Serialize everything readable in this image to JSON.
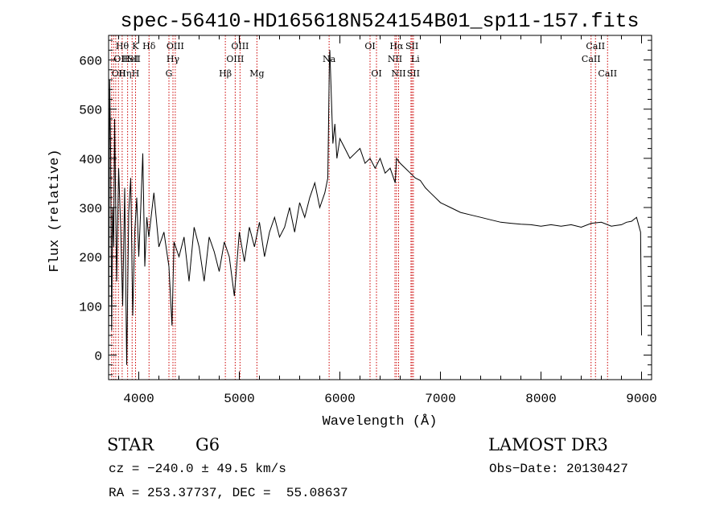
{
  "chart_data": {
    "type": "line",
    "title": "spec-56410-HD165618N524154B01_sp11-157.fits",
    "xlabel": "Wavelength (Å)",
    "ylabel": "Flux (relative)",
    "xlim": [
      3700,
      9100
    ],
    "ylim": [
      -50,
      650
    ],
    "xticks": [
      4000,
      5000,
      6000,
      7000,
      8000,
      9000
    ],
    "yticks": [
      0,
      100,
      200,
      300,
      400,
      500,
      600
    ],
    "grid": false,
    "line_color": "#000000",
    "marker_color": "#cc0000",
    "spectrum": {
      "x": [
        3700,
        3710,
        3720,
        3730,
        3740,
        3750,
        3760,
        3780,
        3800,
        3820,
        3840,
        3860,
        3880,
        3900,
        3920,
        3940,
        3960,
        3980,
        4000,
        4020,
        4040,
        4060,
        4080,
        4100,
        4150,
        4200,
        4250,
        4300,
        4330,
        4350,
        4400,
        4450,
        4500,
        4550,
        4600,
        4650,
        4700,
        4750,
        4800,
        4850,
        4900,
        4950,
        5000,
        5050,
        5100,
        5150,
        5200,
        5250,
        5300,
        5350,
        5400,
        5450,
        5500,
        5550,
        5600,
        5650,
        5700,
        5750,
        5800,
        5850,
        5880,
        5895,
        5900,
        5930,
        5950,
        5970,
        6000,
        6050,
        6100,
        6150,
        6200,
        6250,
        6300,
        6350,
        6400,
        6450,
        6500,
        6550,
        6563,
        6600,
        6650,
        6700,
        6750,
        6800,
        6850,
        6900,
        6950,
        7000,
        7100,
        7200,
        7300,
        7400,
        7500,
        7600,
        7700,
        7800,
        7900,
        8000,
        8100,
        8200,
        8300,
        8400,
        8500,
        8600,
        8700,
        8800,
        8850,
        8900,
        8950,
        8990,
        9000
      ],
      "y": [
        0,
        560,
        420,
        50,
        300,
        220,
        480,
        150,
        380,
        260,
        100,
        340,
        -20,
        290,
        360,
        80,
        250,
        320,
        200,
        300,
        410,
        180,
        280,
        240,
        330,
        220,
        250,
        180,
        60,
        230,
        200,
        240,
        150,
        260,
        220,
        150,
        240,
        210,
        170,
        230,
        200,
        120,
        250,
        190,
        260,
        220,
        270,
        200,
        250,
        280,
        240,
        260,
        300,
        250,
        310,
        280,
        320,
        350,
        300,
        330,
        360,
        590,
        620,
        430,
        470,
        400,
        440,
        420,
        400,
        410,
        420,
        390,
        400,
        380,
        400,
        370,
        380,
        350,
        400,
        390,
        380,
        370,
        360,
        355,
        340,
        330,
        320,
        310,
        300,
        290,
        285,
        280,
        275,
        270,
        268,
        266,
        265,
        262,
        265,
        262,
        265,
        260,
        268,
        270,
        262,
        265,
        270,
        272,
        280,
        250,
        40
      ]
    },
    "lines": [
      {
        "x": 3730,
        "label": "OII",
        "row": 2,
        "anchor": "start"
      },
      {
        "x": 3750,
        "label": "OII",
        "row": 1,
        "anchor": "start"
      },
      {
        "x": 3771,
        "label": "Hθ",
        "row": 0,
        "anchor": "start"
      },
      {
        "x": 3798,
        "label": "Hη",
        "row": 2,
        "anchor": "start"
      },
      {
        "x": 3835,
        "label": "HeI",
        "row": 1,
        "anchor": "start"
      },
      {
        "x": 3889,
        "label": "SII",
        "row": 1,
        "anchor": "start"
      },
      {
        "x": 3934,
        "label": "K",
        "row": 0,
        "anchor": "start"
      },
      {
        "x": 3968,
        "label": "H",
        "row": 2,
        "anchor": "middle"
      },
      {
        "x": 4102,
        "label": "Hδ",
        "row": 0,
        "anchor": "middle"
      },
      {
        "x": 4300,
        "label": "G",
        "row": 2,
        "anchor": "middle"
      },
      {
        "x": 4340,
        "label": "Hγ",
        "row": 1,
        "anchor": "middle"
      },
      {
        "x": 4363,
        "label": "OIII",
        "row": 0,
        "anchor": "middle"
      },
      {
        "x": 4861,
        "label": "Hβ",
        "row": 2,
        "anchor": "middle"
      },
      {
        "x": 4959,
        "label": "OIII",
        "row": 1,
        "anchor": "middle"
      },
      {
        "x": 5007,
        "label": "OIII",
        "row": 0,
        "anchor": "middle"
      },
      {
        "x": 5175,
        "label": "Mg",
        "row": 2,
        "anchor": "middle"
      },
      {
        "x": 5893,
        "label": "Na",
        "row": 1,
        "anchor": "middle"
      },
      {
        "x": 6300,
        "label": "OI",
        "row": 0,
        "anchor": "middle"
      },
      {
        "x": 6364,
        "label": "OI",
        "row": 2,
        "anchor": "middle"
      },
      {
        "x": 6548,
        "label": "NII",
        "row": 1,
        "anchor": "middle"
      },
      {
        "x": 6563,
        "label": "Hα",
        "row": 0,
        "anchor": "middle"
      },
      {
        "x": 6584,
        "label": "NII",
        "row": 2,
        "anchor": "middle"
      },
      {
        "x": 6707,
        "label": "Li",
        "row": 1,
        "anchor": "start"
      },
      {
        "x": 6717,
        "label": "SII",
        "row": 0,
        "anchor": "middle"
      },
      {
        "x": 6731,
        "label": "SII",
        "row": 2,
        "anchor": "middle"
      },
      {
        "x": 8498,
        "label": "CaII",
        "row": 1,
        "anchor": "middle"
      },
      {
        "x": 8542,
        "label": "CaII",
        "row": 0,
        "anchor": "middle"
      },
      {
        "x": 8662,
        "label": "CaII",
        "row": 2,
        "anchor": "middle"
      }
    ]
  },
  "info": {
    "object_class": "STAR",
    "subclass": "G6",
    "survey": "LAMOST DR3",
    "velocity": "cz = −240.0 ± 49.5 km/s",
    "obs_date": "Obs−Date: 20130427",
    "coords": "RA = 253.37737, DEC =  55.08637"
  }
}
